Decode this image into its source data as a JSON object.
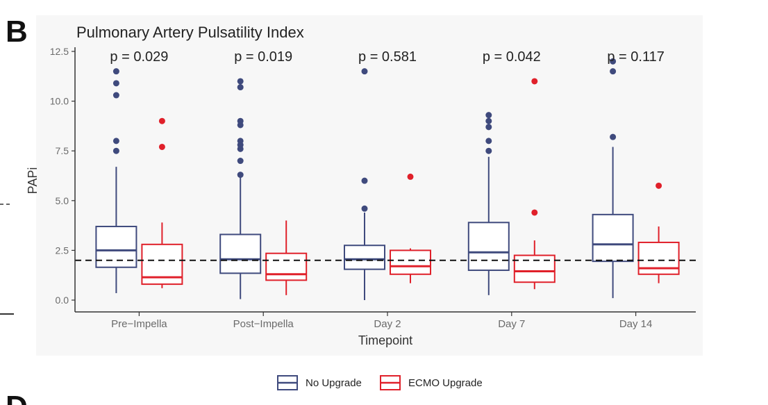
{
  "figure": {
    "panel_label": "B",
    "next_panel_label": "D"
  },
  "chart_data": {
    "type": "box",
    "title": "Pulmonary Artery Pulsatility Index",
    "xlabel": "Timepoint",
    "ylabel": "PAPi",
    "ylim": [
      0,
      12.5
    ],
    "yticks": [
      0.0,
      2.5,
      5.0,
      7.5,
      10.0,
      12.5
    ],
    "ytick_labels": [
      "0.0",
      "2.5",
      "5.0",
      "7.5",
      "10.0",
      "12.5"
    ],
    "categories": [
      "Pre−Impella",
      "Post−Impella",
      "Day 2",
      "Day 7",
      "Day 14"
    ],
    "p_values": [
      "p = 0.029",
      "p = 0.019",
      "p = 0.581",
      "p = 0.042",
      "p = 0.117"
    ],
    "reference_line": 2.0,
    "legend_position": "bottom",
    "series": [
      {
        "name": "No Upgrade",
        "color": "#3f4a7d",
        "boxes": [
          {
            "min": 0.35,
            "q1": 1.65,
            "median": 2.5,
            "q3": 3.7,
            "max": 6.7,
            "outliers": [
              7.5,
              8.0,
              10.3,
              10.9,
              11.5
            ]
          },
          {
            "min": 0.05,
            "q1": 1.35,
            "median": 2.05,
            "q3": 3.3,
            "max": 6.2,
            "outliers": [
              6.3,
              7.0,
              7.6,
              7.8,
              8.0,
              8.8,
              9.0,
              10.7,
              11.0
            ]
          },
          {
            "min": 0.0,
            "q1": 1.55,
            "median": 2.05,
            "q3": 2.75,
            "max": 4.4,
            "outliers": [
              4.6,
              6.0,
              11.5
            ]
          },
          {
            "min": 0.25,
            "q1": 1.5,
            "median": 2.4,
            "q3": 3.9,
            "max": 7.2,
            "outliers": [
              7.5,
              8.0,
              8.7,
              9.0,
              9.3
            ]
          },
          {
            "min": 0.1,
            "q1": 1.95,
            "median": 2.8,
            "q3": 4.3,
            "max": 7.7,
            "outliers": [
              8.2,
              11.5,
              12.0
            ]
          }
        ]
      },
      {
        "name": "ECMO Upgrade",
        "color": "#e0202a",
        "boxes": [
          {
            "min": 0.6,
            "q1": 0.8,
            "median": 1.15,
            "q3": 2.8,
            "max": 3.9,
            "outliers": [
              7.7,
              9.0
            ]
          },
          {
            "min": 0.25,
            "q1": 1.0,
            "median": 1.3,
            "q3": 2.35,
            "max": 4.0,
            "outliers": []
          },
          {
            "min": 0.85,
            "q1": 1.3,
            "median": 1.7,
            "q3": 2.5,
            "max": 2.6,
            "outliers": [
              6.2
            ]
          },
          {
            "min": 0.55,
            "q1": 0.9,
            "median": 1.45,
            "q3": 2.25,
            "max": 3.0,
            "outliers": [
              4.4,
              11.0
            ]
          },
          {
            "min": 0.85,
            "q1": 1.3,
            "median": 1.6,
            "q3": 2.9,
            "max": 3.7,
            "outliers": [
              5.75
            ]
          }
        ]
      }
    ]
  }
}
